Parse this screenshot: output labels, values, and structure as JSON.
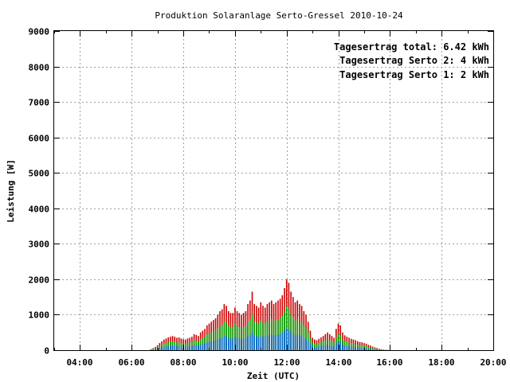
{
  "chart_data": {
    "type": "bar",
    "title": "Produktion Solaranlage Serto-Gressel 2010-10-24",
    "xlabel": "Zeit (UTC)",
    "ylabel": "Leistung [W]",
    "xlim": [
      3.0,
      20.0
    ],
    "ylim": [
      0,
      9000
    ],
    "x_ticks": [
      {
        "value": 4,
        "label": "04:00"
      },
      {
        "value": 6,
        "label": "06:00"
      },
      {
        "value": 8,
        "label": "08:00"
      },
      {
        "value": 10,
        "label": "10:00"
      },
      {
        "value": 12,
        "label": "12:00"
      },
      {
        "value": 14,
        "label": "14:00"
      },
      {
        "value": 16,
        "label": "16:00"
      },
      {
        "value": 18,
        "label": "18:00"
      },
      {
        "value": 20,
        "label": "20:00"
      }
    ],
    "y_ticks": [
      {
        "value": 0,
        "label": "0"
      },
      {
        "value": 1000,
        "label": "1000"
      },
      {
        "value": 2000,
        "label": "2000"
      },
      {
        "value": 3000,
        "label": "3000"
      },
      {
        "value": 4000,
        "label": "4000"
      },
      {
        "value": 5000,
        "label": "5000"
      },
      {
        "value": 6000,
        "label": "6000"
      },
      {
        "value": 7000,
        "label": "7000"
      },
      {
        "value": 8000,
        "label": "8000"
      },
      {
        "value": 9000,
        "label": "9000"
      }
    ],
    "grid": true,
    "legend_position": "top-right",
    "legend": [
      {
        "label": "Tagesertrag total: 6.42 kWh",
        "color": "#cc0000"
      },
      {
        "label": "Tagesertrag Serto 2: 4 kWh",
        "color": "#00a000"
      },
      {
        "label": "Tagesertrag Serto 1: 2 kWh",
        "color": "#0066cc"
      }
    ],
    "colors": {
      "total": "#cc0000",
      "serto2": "#00a000",
      "serto1": "#0066cc"
    },
    "x": [
      6.75,
      6.833,
      6.917,
      7.0,
      7.083,
      7.167,
      7.25,
      7.333,
      7.417,
      7.5,
      7.583,
      7.667,
      7.75,
      7.833,
      7.917,
      8.0,
      8.083,
      8.167,
      8.25,
      8.333,
      8.417,
      8.5,
      8.583,
      8.667,
      8.75,
      8.833,
      8.917,
      9.0,
      9.083,
      9.167,
      9.25,
      9.333,
      9.417,
      9.5,
      9.583,
      9.667,
      9.75,
      9.833,
      9.917,
      10.0,
      10.083,
      10.167,
      10.25,
      10.333,
      10.417,
      10.5,
      10.583,
      10.667,
      10.75,
      10.833,
      10.917,
      11.0,
      11.083,
      11.167,
      11.25,
      11.333,
      11.417,
      11.5,
      11.583,
      11.667,
      11.75,
      11.833,
      11.917,
      12.0,
      12.083,
      12.167,
      12.25,
      12.333,
      12.417,
      12.5,
      12.583,
      12.667,
      12.75,
      12.833,
      12.917,
      13.0,
      13.083,
      13.167,
      13.25,
      13.333,
      13.417,
      13.5,
      13.583,
      13.667,
      13.75,
      13.833,
      13.917,
      14.0,
      14.083,
      14.167,
      14.25,
      14.333,
      14.417,
      14.5,
      14.583,
      14.667,
      14.75,
      14.833,
      14.917,
      15.0,
      15.083,
      15.167,
      15.25,
      15.333,
      15.417,
      15.5,
      15.583,
      15.667,
      15.75,
      15.833,
      15.917
    ],
    "series": [
      {
        "name": "Tagesertrag total: 6.42 kWh",
        "values": [
          30,
          60,
          90,
          140,
          200,
          250,
          300,
          330,
          360,
          380,
          400,
          380,
          350,
          360,
          330,
          310,
          300,
          330,
          350,
          380,
          450,
          430,
          400,
          500,
          550,
          600,
          700,
          750,
          800,
          850,
          900,
          1000,
          1100,
          1150,
          1300,
          1250,
          1100,
          1050,
          1050,
          1200,
          1100,
          1050,
          1000,
          1050,
          1100,
          1300,
          1400,
          1650,
          1300,
          1250,
          1200,
          1350,
          1250,
          1200,
          1300,
          1350,
          1400,
          1300,
          1350,
          1400,
          1450,
          1550,
          1750,
          2000,
          1900,
          1650,
          1500,
          1350,
          1400,
          1300,
          1250,
          1100,
          1000,
          800,
          550,
          350,
          300,
          280,
          320,
          360,
          400,
          450,
          500,
          450,
          400,
          350,
          600,
          750,
          700,
          500,
          420,
          380,
          350,
          320,
          300,
          280,
          250,
          230,
          220,
          200,
          180,
          150,
          130,
          100,
          80,
          60,
          40,
          25,
          15,
          10,
          5
        ]
      },
      {
        "name": "Tagesertrag Serto 2: 4 kWh",
        "values": [
          19,
          37,
          56,
          87,
          125,
          156,
          187,
          206,
          224,
          237,
          249,
          237,
          218,
          224,
          206,
          193,
          187,
          206,
          218,
          237,
          280,
          268,
          249,
          312,
          343,
          374,
          436,
          467,
          498,
          530,
          561,
          623,
          685,
          717,
          810,
          779,
          685,
          654,
          654,
          748,
          685,
          654,
          623,
          654,
          685,
          810,
          872,
          1028,
          810,
          779,
          748,
          841,
          779,
          748,
          810,
          841,
          872,
          810,
          841,
          872,
          903,
          966,
          1090,
          1246,
          1184,
          1028,
          935,
          841,
          872,
          810,
          779,
          685,
          623,
          498,
          343,
          218,
          187,
          174,
          199,
          224,
          249,
          280,
          312,
          280,
          249,
          218,
          374,
          467,
          436,
          312,
          262,
          237,
          218,
          199,
          187,
          174,
          156,
          143,
          137,
          125,
          112,
          93,
          81,
          62,
          50,
          37,
          25,
          16,
          9,
          6,
          3
        ]
      },
      {
        "name": "Tagesertrag Serto 1: 2 kWh",
        "values": [
          9,
          19,
          28,
          44,
          62,
          78,
          93,
          103,
          112,
          118,
          125,
          118,
          109,
          112,
          103,
          97,
          93,
          103,
          109,
          118,
          140,
          134,
          125,
          156,
          171,
          187,
          218,
          234,
          249,
          265,
          280,
          312,
          343,
          358,
          405,
          389,
          343,
          327,
          327,
          374,
          343,
          327,
          312,
          327,
          343,
          405,
          436,
          514,
          405,
          389,
          374,
          421,
          389,
          374,
          405,
          421,
          436,
          405,
          421,
          436,
          452,
          483,
          545,
          623,
          592,
          514,
          467,
          421,
          436,
          405,
          389,
          343,
          312,
          249,
          171,
          109,
          93,
          87,
          100,
          112,
          125,
          140,
          156,
          140,
          125,
          109,
          187,
          234,
          218,
          156,
          131,
          118,
          109,
          100,
          93,
          87,
          78,
          72,
          69,
          62,
          56,
          47,
          40,
          31,
          25,
          19,
          12,
          8,
          5,
          3,
          2
        ]
      }
    ]
  }
}
